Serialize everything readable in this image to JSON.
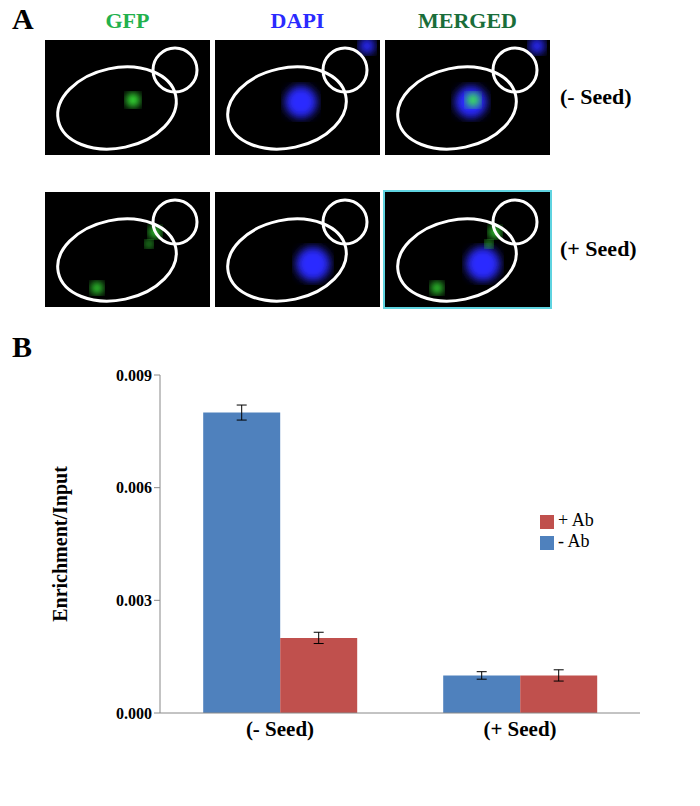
{
  "panel_a": {
    "label": "A",
    "columns": [
      "GFP",
      "DAPI",
      "MERGED"
    ],
    "rows": [
      "(- Seed)",
      "(+ Seed)"
    ]
  },
  "chart_data": {
    "type": "bar",
    "annotations": [
      "B"
    ],
    "y_label": "Enrichment/Input",
    "categories": [
      "(- Seed)",
      "(+ Seed)"
    ],
    "series": [
      {
        "name": "- Ab",
        "color": "#4f81bd",
        "values": [
          0.008,
          0.001
        ],
        "errors": [
          0.0002,
          0.0001
        ]
      },
      {
        "name": "+ Ab",
        "color": "#c0504d",
        "values": [
          0.002,
          0.001
        ],
        "errors": [
          0.00015,
          0.00015
        ]
      }
    ],
    "ylim": [
      0,
      0.009
    ],
    "yticks": [
      {
        "value": 0,
        "label": "0.000"
      },
      {
        "value": 0.003,
        "label": "0.003"
      },
      {
        "value": 0.006,
        "label": "0.006"
      },
      {
        "value": 0.009,
        "label": "0.009"
      }
    ],
    "grid": false,
    "legend": "right"
  }
}
